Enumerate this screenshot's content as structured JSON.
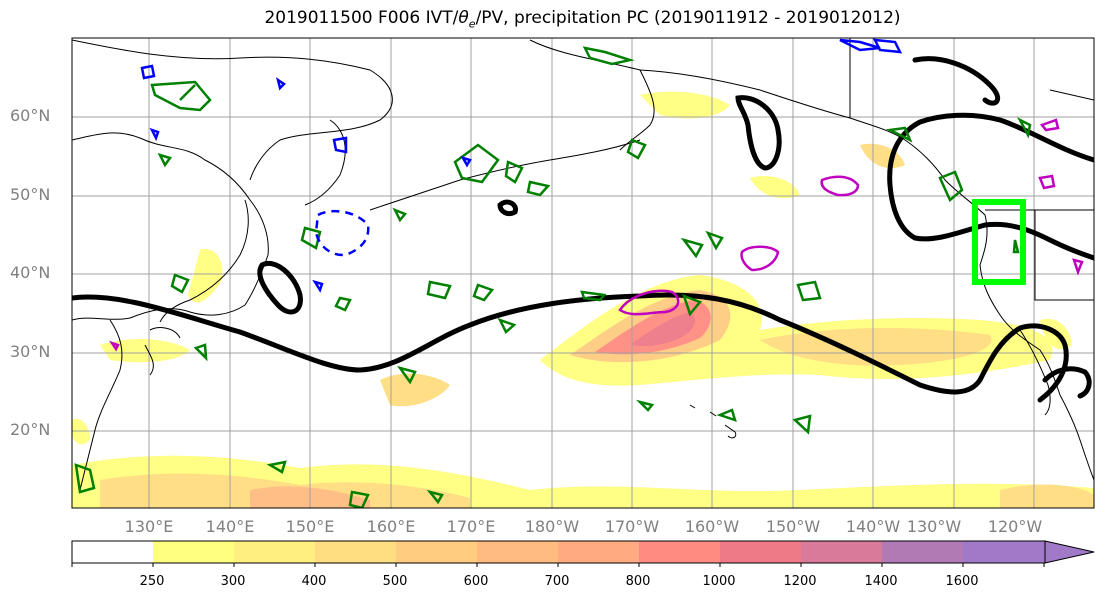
{
  "title": "2019011500 F006 IVT/θe/PV, precipitation PC (2019011912 - 2019012012)",
  "title_parts": {
    "pre": "2019011500 F006 IVT/",
    "theta": "θ",
    "sub": "e",
    "post": "/PV, precipitation PC (2019011912 - 2019012012)"
  },
  "map": {
    "lat_labels": [
      "60°N",
      "50°N",
      "40°N",
      "30°N",
      "20°N"
    ],
    "lon_labels": [
      "130°E",
      "140°E",
      "150°E",
      "160°E",
      "170°E",
      "180°W",
      "170°W",
      "160°W",
      "150°W",
      "140°W",
      "130°W",
      "120°W"
    ],
    "highlight_box_color": "#00ff00",
    "contour_colors": {
      "theta_e": "#000000",
      "pv_positive": "#008000",
      "pv_negative": "#0000ff",
      "ivt_high": "#c000c0"
    }
  },
  "colorbar": {
    "ticks": [
      "250",
      "300",
      "400",
      "500",
      "600",
      "700",
      "800",
      "1000",
      "1200",
      "1400",
      "1600"
    ],
    "colors": [
      "#ffffff",
      "#ffff80",
      "#ffef80",
      "#ffdd80",
      "#ffcc80",
      "#ffbb80",
      "#ffaa80",
      "#ff8c80",
      "#ee7a88",
      "#d97a9a",
      "#b27ab4",
      "#a07ac8"
    ],
    "extend": "max"
  }
}
